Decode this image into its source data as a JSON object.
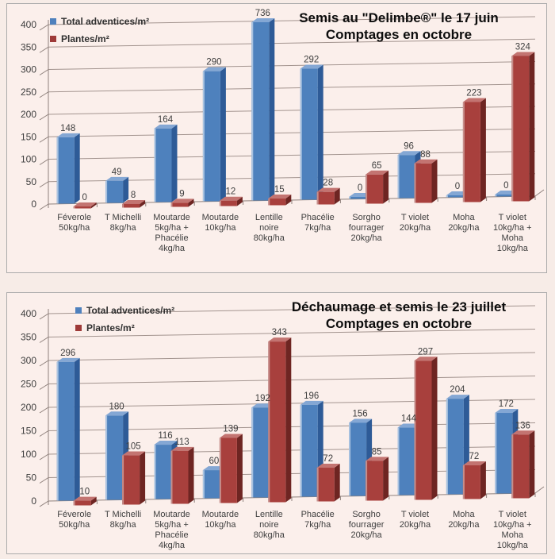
{
  "charts": [
    {
      "title_line1": "Semis au \"Delimbe®\" le 17 juin",
      "title_line2": "Comptages en octobre",
      "legend": [
        {
          "label": "Total adventices/m²"
        },
        {
          "label": "Plantes/m²"
        }
      ]
    },
    {
      "title_line1": "Déchaumage et semis le 23 juillet",
      "title_line2": "Comptages en octobre",
      "legend": [
        {
          "label": "Total adventices/m²"
        },
        {
          "label": "Plantes/m²"
        }
      ]
    }
  ],
  "chart_data": [
    {
      "type": "bar",
      "title": "Semis au \"Delimbe®\" le 17 juin — Comptages en octobre",
      "categories": [
        "Féverole 50kg/ha",
        "T Michelli 8kg/ha",
        "Moutarde 5kg/ha + Phacélie 4kg/ha",
        "Moutarde 10kg/ha",
        "Lentille noire 80kg/ha",
        "Phacélie 7kg/ha",
        "Sorgho fourrager 20kg/ha",
        "T violet 20kg/ha",
        "Moha 20kg/ha",
        "T violet 10kg/ha + Moha 10kg/ha"
      ],
      "category_lines": [
        [
          "Féverole",
          "50kg/ha"
        ],
        [
          "T Michelli",
          "8kg/ha"
        ],
        [
          "Moutarde",
          "5kg/ha +",
          "Phacélie",
          "4kg/ha"
        ],
        [
          "Moutarde",
          "10kg/ha"
        ],
        [
          "Lentille",
          "noire",
          "80kg/ha"
        ],
        [
          "Phacélie",
          "7kg/ha"
        ],
        [
          "Sorgho",
          "fourrager",
          "20kg/ha"
        ],
        [
          "T violet",
          "20kg/ha"
        ],
        [
          "Moha",
          "20kg/ha"
        ],
        [
          "T violet",
          "10kg/ha +",
          "Moha",
          "10kg/ha"
        ]
      ],
      "series": [
        {
          "name": "Total adventices/m²",
          "swatch": "#4f81bd",
          "front": "#4e81bd",
          "top": "#84a7d4",
          "side": "#2e5b97",
          "edge": "#aac3e0",
          "values": [
            148,
            49,
            164,
            290,
            736,
            292,
            0,
            96,
            0,
            0
          ]
        },
        {
          "name": "Plantes/m²",
          "swatch": "#9e3a38",
          "front": "#a8403d",
          "top": "#c37471",
          "side": "#6e2522",
          "edge": "#c68f8c",
          "values": [
            0,
            8,
            9,
            12,
            15,
            28,
            65,
            88,
            223,
            324
          ]
        }
      ],
      "xlabel": "",
      "ylabel": "",
      "ylim": [
        0,
        400
      ],
      "ytick_step": 50,
      "grid": true,
      "legend_position": "top-left",
      "note": "736 bar is clipped at the top of the plot area"
    },
    {
      "type": "bar",
      "title": "Déchaumage et semis le 23 juillet — Comptages en octobre",
      "categories": [
        "Féverole 50kg/ha",
        "T Michelli 8kg/ha",
        "Moutarde 5kg/ha + Phacélie 4kg/ha",
        "Moutarde 10kg/ha",
        "Lentille noire 80kg/ha",
        "Phacélie 7kg/ha",
        "Sorgho fourrager 20kg/ha",
        "T violet 20kg/ha",
        "Moha 20kg/ha",
        "T violet 10kg/ha + Moha 10kg/ha"
      ],
      "category_lines": [
        [
          "Féverole",
          "50kg/ha"
        ],
        [
          "T Michelli",
          "8kg/ha"
        ],
        [
          "Moutarde",
          "5kg/ha +",
          "Phacélie",
          "4kg/ha"
        ],
        [
          "Moutarde",
          "10kg/ha"
        ],
        [
          "Lentille",
          "noire",
          "80kg/ha"
        ],
        [
          "Phacélie",
          "7kg/ha"
        ],
        [
          "Sorgho",
          "fourrager",
          "20kg/ha"
        ],
        [
          "T violet",
          "20kg/ha"
        ],
        [
          "Moha",
          "20kg/ha"
        ],
        [
          "T violet",
          "10kg/ha +",
          "Moha",
          "10kg/ha"
        ]
      ],
      "series": [
        {
          "name": "Total adventices/m²",
          "swatch": "#4f81bd",
          "front": "#4e81bd",
          "top": "#84a7d4",
          "side": "#2e5b97",
          "edge": "#aac3e0",
          "values": [
            296,
            180,
            116,
            60,
            192,
            196,
            156,
            144,
            204,
            172
          ]
        },
        {
          "name": "Plantes/m²",
          "swatch": "#9e3a38",
          "front": "#a8403d",
          "top": "#c37471",
          "side": "#6e2522",
          "edge": "#c68f8c",
          "values": [
            10,
            105,
            113,
            139,
            343,
            72,
            85,
            297,
            72,
            136
          ]
        }
      ],
      "xlabel": "",
      "ylabel": "",
      "ylim": [
        0,
        400
      ],
      "ytick_step": 50,
      "grid": true,
      "legend_position": "top-left"
    }
  ],
  "style_colors": {
    "page_bg": "#f7ece7",
    "chart_bg": "#fbefeb",
    "gridline": "#a3948f",
    "axis": "#8f817c",
    "text": "#3e3e3e",
    "title_text": "#0d0d0d"
  }
}
